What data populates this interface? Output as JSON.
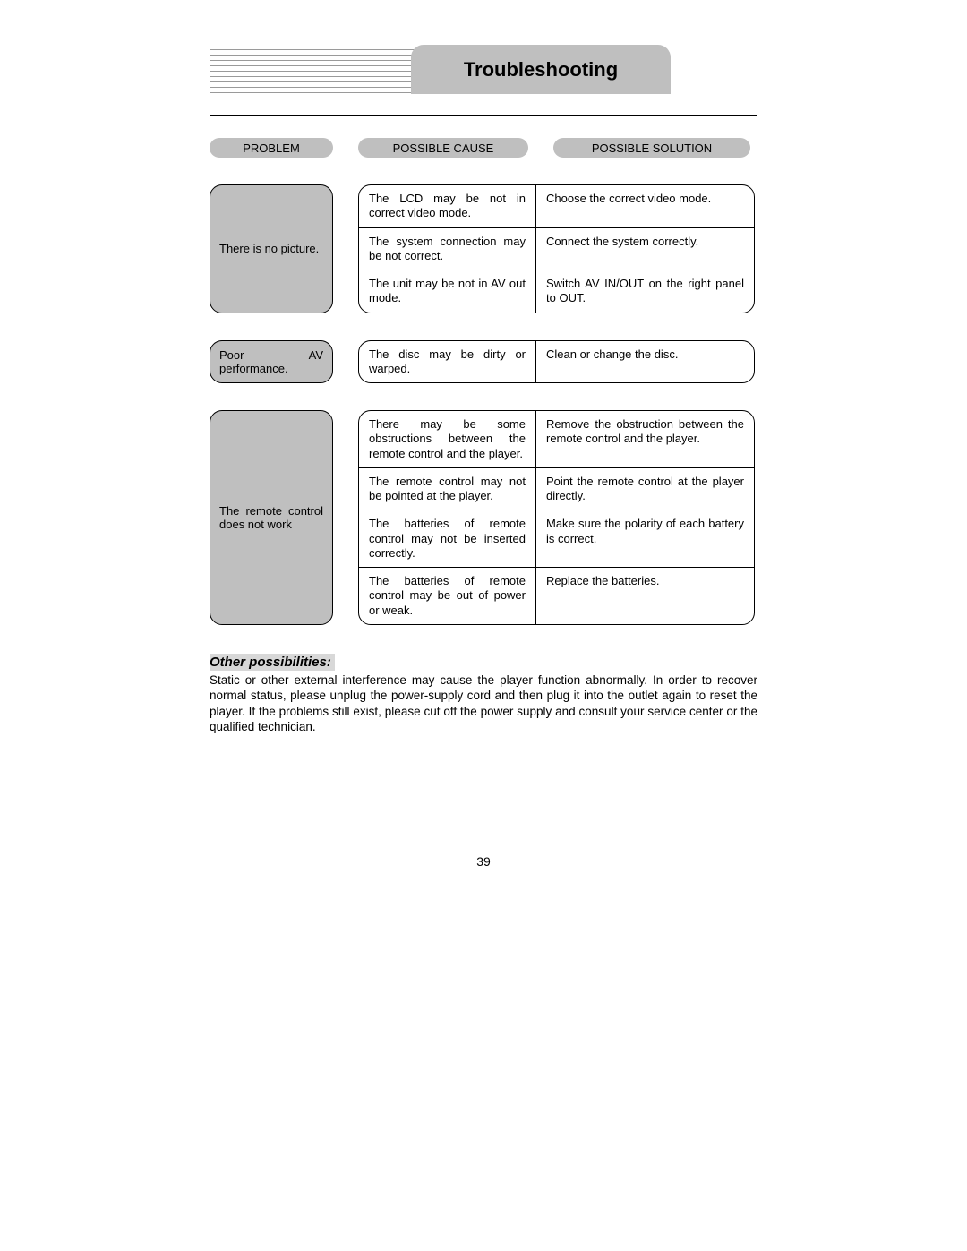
{
  "title": "Troubleshooting",
  "headers": {
    "problem": "PROBLEM",
    "cause": "POSSIBLE CAUSE",
    "solution": "POSSIBLE SOLUTION"
  },
  "groups": [
    {
      "problem": "There is no picture.",
      "rows": [
        {
          "cause": "The LCD may be not in correct video mode.",
          "solution": "Choose the correct video mode."
        },
        {
          "cause": "The system connection may be not correct.",
          "solution": "Connect the system correctly."
        },
        {
          "cause": "The unit may be not in AV out mode.",
          "solution": "Switch AV IN/OUT on the right panel to OUT."
        }
      ]
    },
    {
      "problem": "Poor AV performance.",
      "rows": [
        {
          "cause": "The disc may be dirty or warped.",
          "solution": "Clean or change the disc."
        }
      ]
    },
    {
      "problem": "The remote control does not work",
      "rows": [
        {
          "cause": "There may be some obstructions between the remote control and the player.",
          "solution": "Remove the obstruction between the remote control and the player."
        },
        {
          "cause": "The remote control may not be pointed at the player.",
          "solution": "Point the remote control at the player directly."
        },
        {
          "cause": "The batteries of remote control may not be inserted correctly.",
          "solution": "Make sure the polarity of each battery is correct."
        },
        {
          "cause": "The batteries of remote control may be out of power or weak.",
          "solution": "Replace the batteries."
        }
      ]
    }
  ],
  "other": {
    "heading": "Other possibilities:",
    "body": "Static or other external interference may cause the player function abnormally. In order to recover normal status, please unplug the power-supply cord and then plug it into the outlet again to reset the player. If the problems still exist, please cut off the power supply and consult your service center or the qualified technician."
  },
  "page_number": "39",
  "colors": {
    "header_bg": "#bfbfbf",
    "line": "#9a9a9a",
    "border": "#000000",
    "highlight": "#d8d8d8"
  }
}
